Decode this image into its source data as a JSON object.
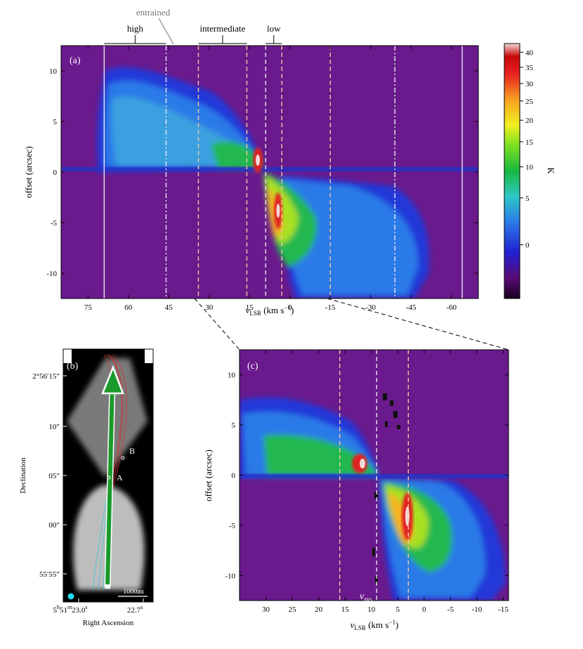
{
  "chart_data": [
    {
      "id": "a",
      "type": "heatmap",
      "panel_label": "(a)",
      "xlabel_main": "v",
      "xlabel_sub": "LSR",
      "xlabel_unit": " (km s",
      "xlabel_exp": "−1",
      "xlabel_close": ")",
      "ylabel": "offset (arcsec)",
      "xlim": [
        85,
        -70
      ],
      "ylim": [
        -12.5,
        12.5
      ],
      "x_ticks": [
        "75",
        "60",
        "45",
        "30",
        "15",
        "0",
        "-15",
        "-30",
        "-45",
        "-60"
      ],
      "x_tick_values": [
        75,
        60,
        45,
        30,
        15,
        0,
        -15,
        -30,
        -45,
        -60
      ],
      "y_ticks": [
        "10",
        "5",
        "0",
        "-5",
        "-10"
      ],
      "y_tick_values": [
        10,
        5,
        0,
        -5,
        -10
      ],
      "velocity_lines": [
        {
          "v": 69,
          "style": "solid",
          "color": "#e8e8f0"
        },
        {
          "v": 46,
          "style": "dashdot",
          "color": "#e8e8f0"
        },
        {
          "v": 34,
          "style": "dashed",
          "color": "#f4c6a0"
        },
        {
          "v": 16,
          "style": "dashed",
          "color": "#f4c6a0"
        },
        {
          "v": 9,
          "style": "dashed",
          "color": "#e8e8f0"
        },
        {
          "v": 3,
          "style": "dashed",
          "color": "#f4c6a0"
        },
        {
          "v": -15,
          "style": "dashed",
          "color": "#f4c6a0"
        },
        {
          "v": -39,
          "style": "dashdot",
          "color": "#e8e8f0"
        },
        {
          "v": -64,
          "style": "solid",
          "color": "#e8e8f0"
        }
      ],
      "regime_labels": [
        {
          "text": "high",
          "v_from": 69,
          "v_to": 46
        },
        {
          "text": "intermediate",
          "v_from": 34,
          "v_to": 16
        },
        {
          "text": "low",
          "v_from": 9,
          "v_to": 3
        }
      ],
      "entrained_label": "entrained",
      "colorbar": {
        "label": "K",
        "ticks": [
          "40",
          "35",
          "30",
          "25",
          "20",
          "15",
          "10",
          "5",
          "0"
        ],
        "tick_values": [
          40,
          35,
          30,
          25,
          20,
          15,
          10,
          5,
          0
        ],
        "range": [
          -2,
          43
        ]
      }
    },
    {
      "id": "b",
      "type": "image",
      "panel_label": "(b)",
      "xlabel": "Right Ascension",
      "ylabel": "Declination",
      "x_ticks": [
        {
          "h": "5",
          "hs": "h",
          "m": "51",
          "ms": "m",
          "s": "23.0",
          "ss": "s"
        },
        {
          "h": "",
          "hs": "",
          "m": "",
          "ms": "",
          "s": "22.7",
          "ss": "s"
        }
      ],
      "y_ticks": [
        "2°56′15″",
        "10″",
        "05″",
        "00″",
        "55′55″"
      ],
      "sources": [
        "A",
        "B"
      ],
      "scalebar": "1000au"
    },
    {
      "id": "c",
      "type": "heatmap",
      "panel_label": "(c)",
      "xlabel_main": "v",
      "xlabel_sub": "LSR",
      "xlabel_unit": " (km s",
      "xlabel_exp": "−1",
      "xlabel_close": ")",
      "ylabel": "offset (arcsec)",
      "xlim": [
        35,
        -16
      ],
      "ylim": [
        -12.5,
        12.5
      ],
      "x_ticks": [
        "30",
        "25",
        "20",
        "15",
        "10",
        "5",
        "0",
        "-5",
        "-10",
        "-15"
      ],
      "x_tick_values": [
        30,
        25,
        20,
        15,
        10,
        5,
        0,
        -5,
        -10,
        -15
      ],
      "y_ticks": [
        "10",
        "5",
        "0",
        "-5",
        "-10"
      ],
      "y_tick_values": [
        10,
        5,
        0,
        -5,
        -10
      ],
      "velocity_lines": [
        {
          "v": 16,
          "style": "dashed",
          "color": "#f4c6a0"
        },
        {
          "v": 9,
          "style": "dashed",
          "color": "#e8e8f0"
        },
        {
          "v": 3,
          "style": "dashed",
          "color": "#f4c6a0"
        }
      ],
      "vsys_label": {
        "main": "v",
        "sub": "sys"
      }
    }
  ]
}
